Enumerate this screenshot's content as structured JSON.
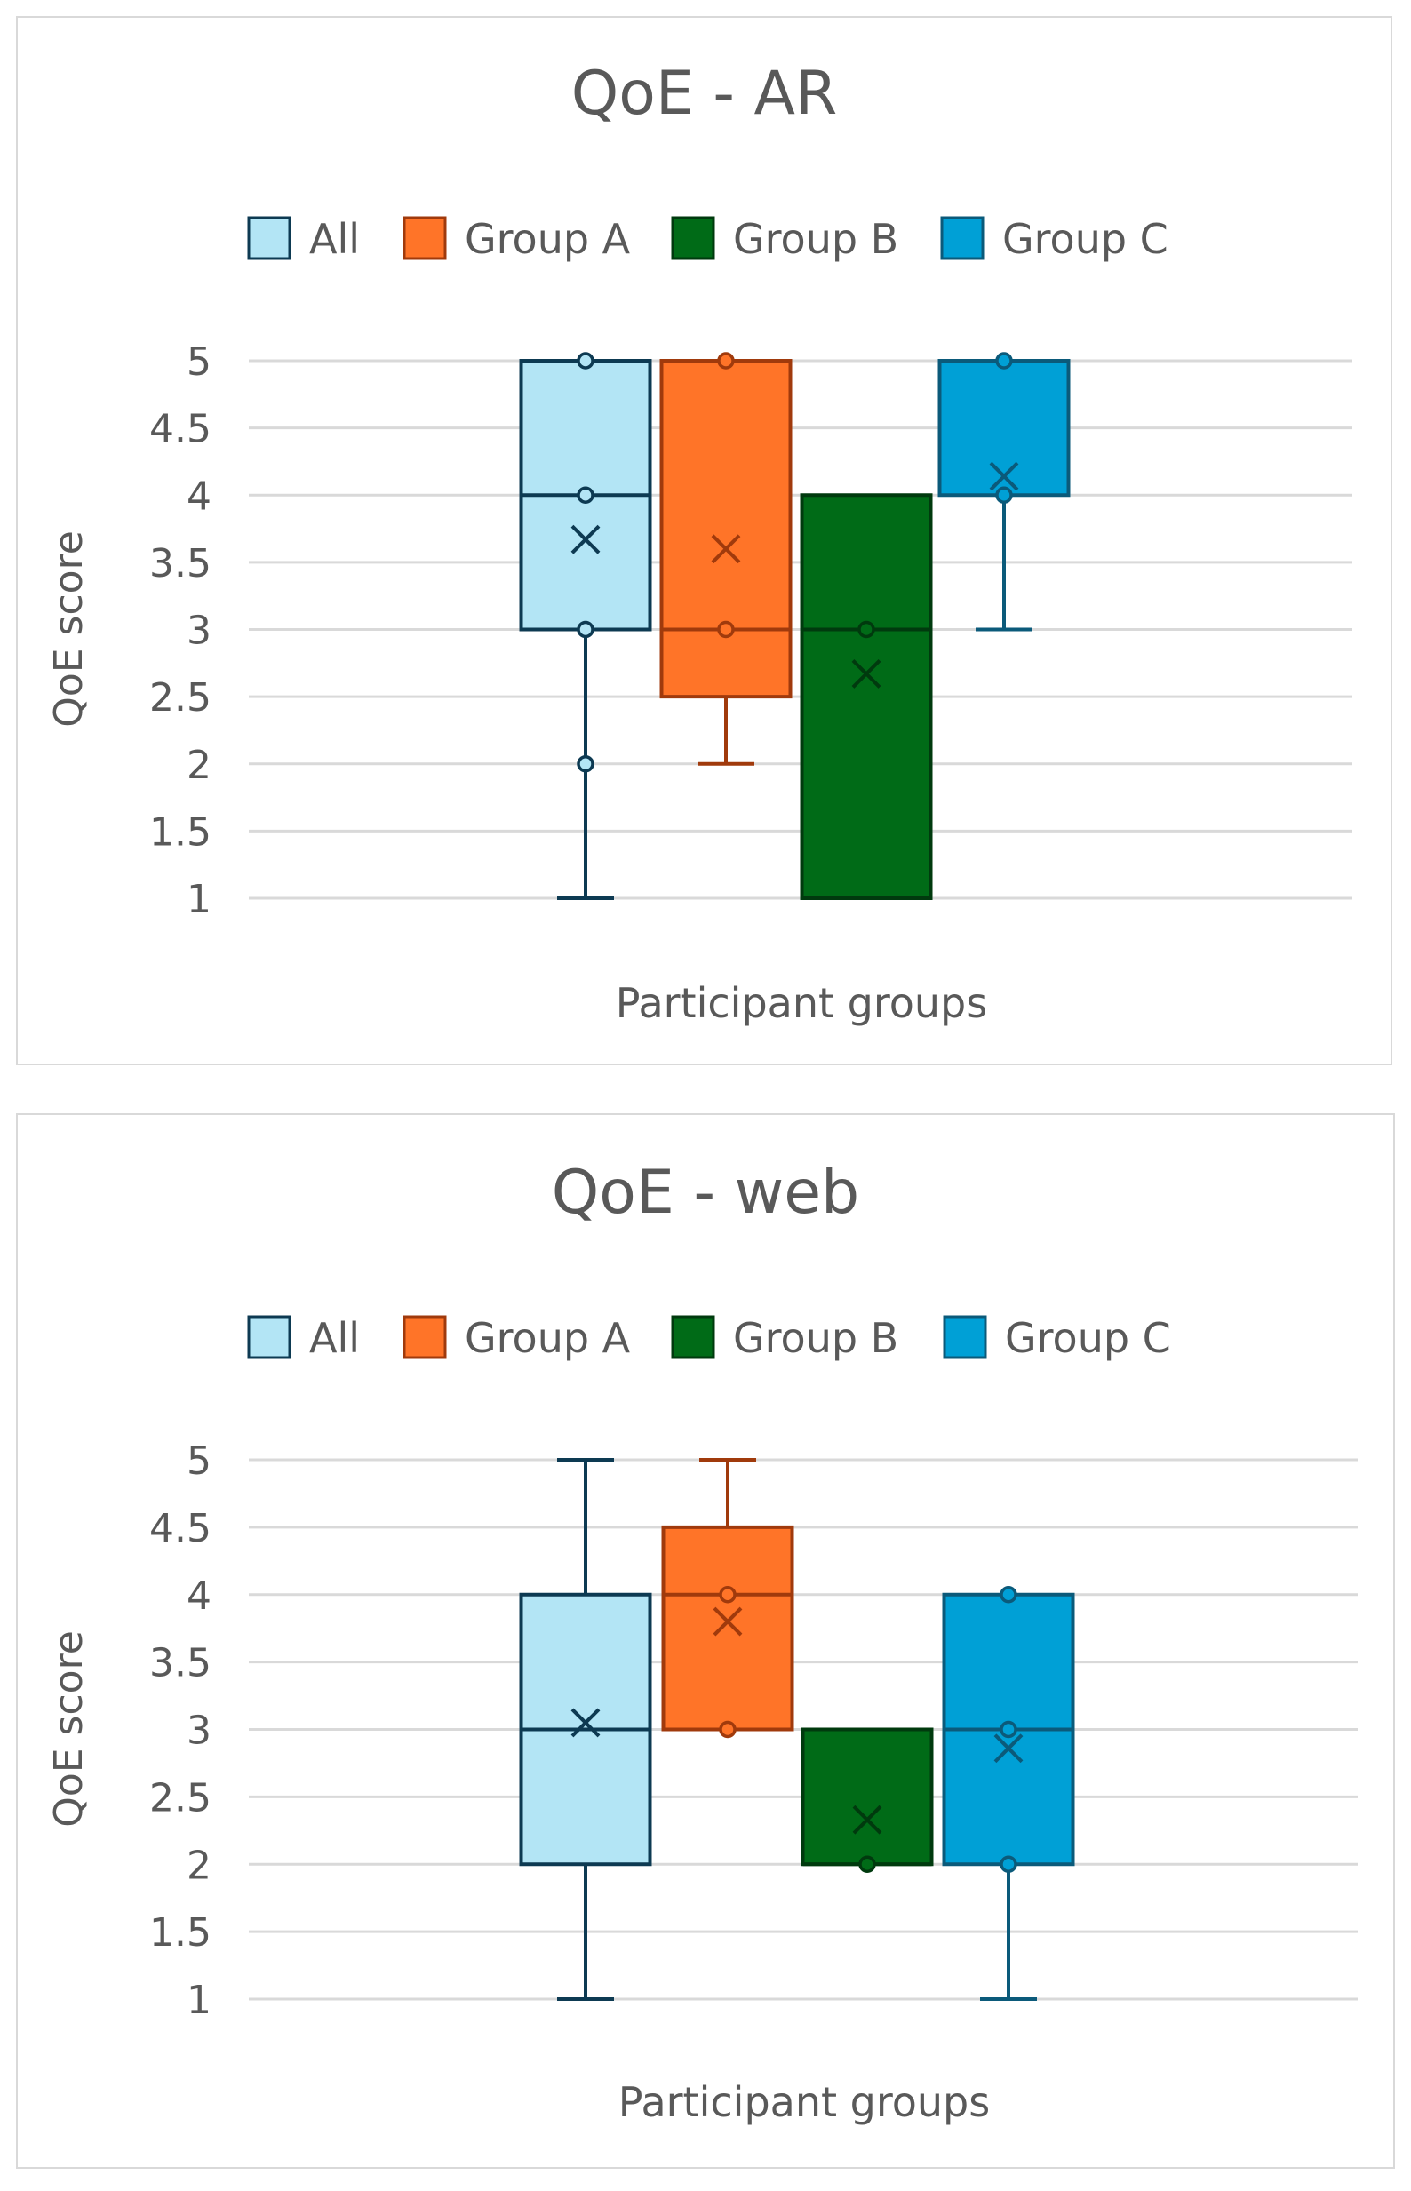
{
  "colors": {
    "All": {
      "fill": "#b3e5f5",
      "stroke": "#0d3a52"
    },
    "Group A": {
      "fill": "#ff7428",
      "stroke": "#a03a0c"
    },
    "Group B": {
      "fill": "#006b17",
      "stroke": "#003a0e"
    },
    "Group C": {
      "fill": "#00a0d6",
      "stroke": "#0b5a7a"
    }
  },
  "chart_data": [
    {
      "type": "box",
      "title": "QoE - AR",
      "xlabel": "Participant groups",
      "ylabel": "QoE score",
      "ylim": [
        1,
        5
      ],
      "yticks": [
        "1",
        "1.5",
        "2",
        "2.5",
        "3",
        "3.5",
        "4",
        "4.5",
        "5"
      ],
      "grid": true,
      "legend": "top",
      "series": [
        {
          "name": "All",
          "min": 1,
          "q1": 3,
          "median": 4,
          "q3": 5,
          "max": 5,
          "mean": 3.67,
          "points": [
            2,
            3,
            4,
            5
          ]
        },
        {
          "name": "Group A",
          "min": 2,
          "q1": 2.5,
          "median": 3,
          "q3": 5,
          "max": 5,
          "mean": 3.6,
          "points": [
            3,
            5
          ]
        },
        {
          "name": "Group B",
          "min": 1,
          "q1": 1,
          "median": 3,
          "q3": 4,
          "max": 4,
          "mean": 2.67,
          "points": [
            3
          ]
        },
        {
          "name": "Group C",
          "min": 3,
          "q1": 4,
          "median": 5,
          "q3": 5,
          "max": 5,
          "mean": 4.14,
          "points": [
            4,
            5
          ]
        }
      ]
    },
    {
      "type": "box",
      "title": "QoE - web",
      "xlabel": "Participant groups",
      "ylabel": "QoE score",
      "ylim": [
        1,
        5
      ],
      "yticks": [
        "1",
        "1.5",
        "2",
        "2.5",
        "3",
        "3.5",
        "4",
        "4.5",
        "5"
      ],
      "grid": true,
      "legend": "top",
      "series": [
        {
          "name": "All",
          "min": 1,
          "q1": 2,
          "median": 3,
          "q3": 4,
          "max": 5,
          "mean": 3.05,
          "points": []
        },
        {
          "name": "Group A",
          "min": 3,
          "q1": 3,
          "median": 4,
          "q3": 4.5,
          "max": 5,
          "mean": 3.8,
          "points": [
            3,
            4
          ]
        },
        {
          "name": "Group B",
          "min": 2,
          "q1": 2,
          "median": 2,
          "q3": 3,
          "max": 3,
          "mean": 2.33,
          "points": [
            2
          ]
        },
        {
          "name": "Group C",
          "min": 1,
          "q1": 2,
          "median": 3,
          "q3": 4,
          "max": 4,
          "mean": 2.86,
          "points": [
            2,
            3,
            4
          ]
        }
      ]
    }
  ]
}
